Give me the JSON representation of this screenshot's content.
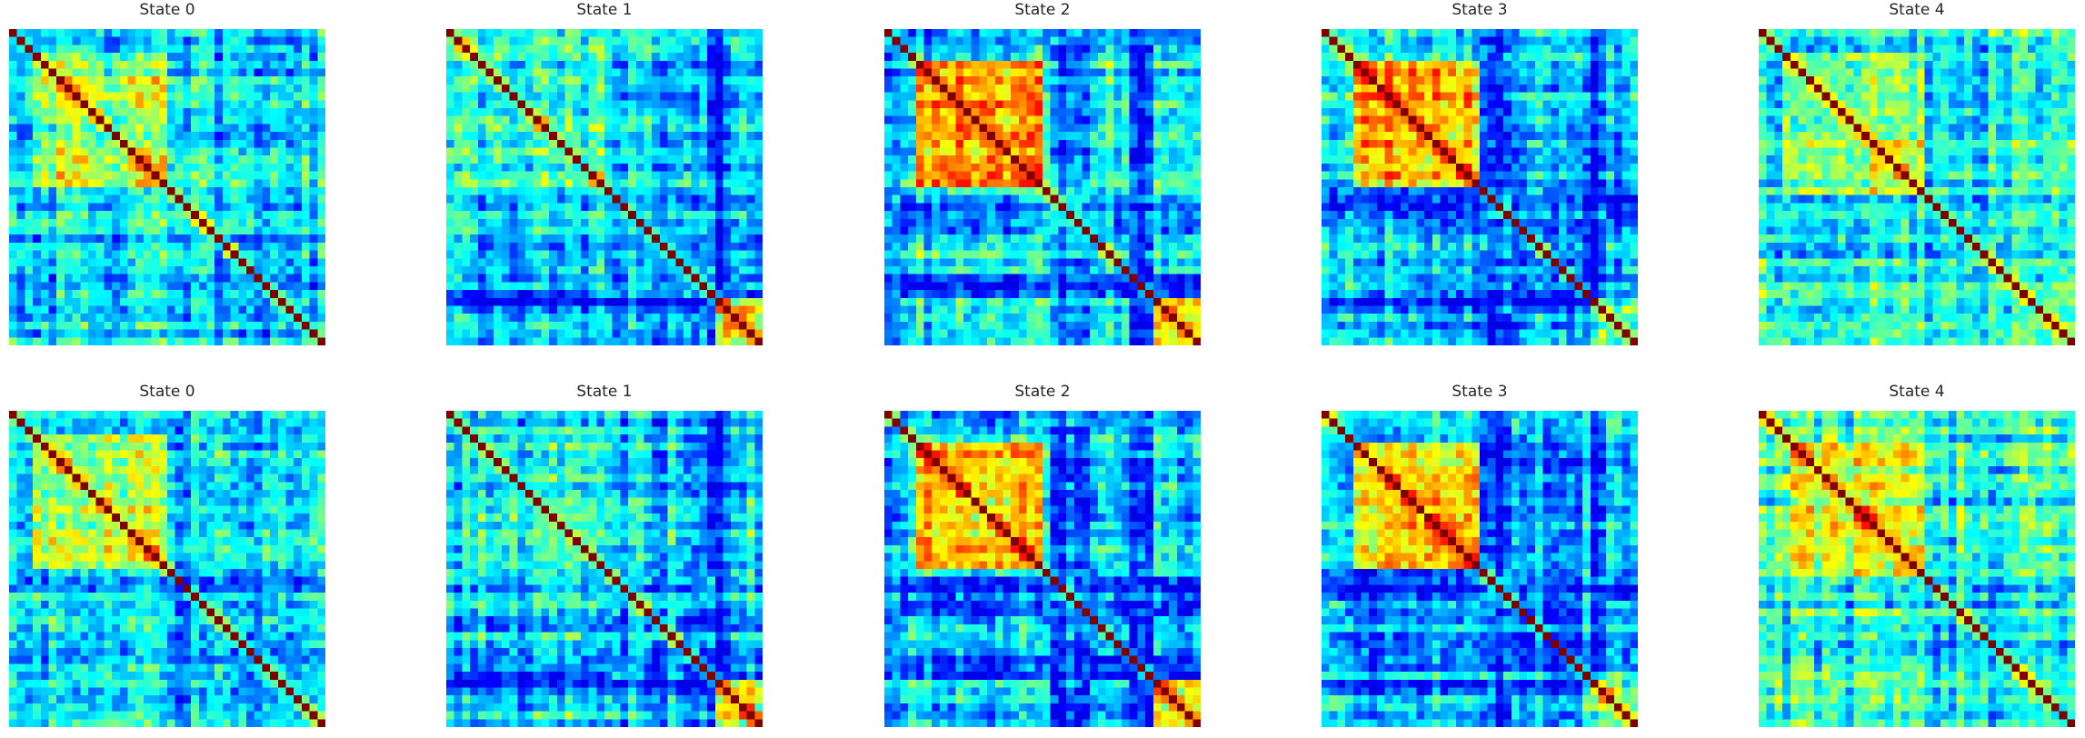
{
  "chart_data": [
    {
      "type": "heatmap",
      "title": "State 0",
      "row": 1,
      "state": 0
    },
    {
      "type": "heatmap",
      "title": "State 1",
      "row": 1,
      "state": 1
    },
    {
      "type": "heatmap",
      "title": "State 2",
      "row": 1,
      "state": 2
    },
    {
      "type": "heatmap",
      "title": "State 3",
      "row": 1,
      "state": 3
    },
    {
      "type": "heatmap",
      "title": "State 4",
      "row": 1,
      "state": 4
    },
    {
      "type": "heatmap",
      "title": "State 0",
      "row": 2,
      "state": 0
    },
    {
      "type": "heatmap",
      "title": "State 1",
      "row": 2,
      "state": 1
    },
    {
      "type": "heatmap",
      "title": "State 2",
      "row": 2,
      "state": 2
    },
    {
      "type": "heatmap",
      "title": "State 3",
      "row": 2,
      "state": 3
    },
    {
      "type": "heatmap",
      "title": "State 4",
      "row": 2,
      "state": 4
    }
  ],
  "colormap": "jet",
  "matrix_size": 40,
  "axes_visible": false
}
